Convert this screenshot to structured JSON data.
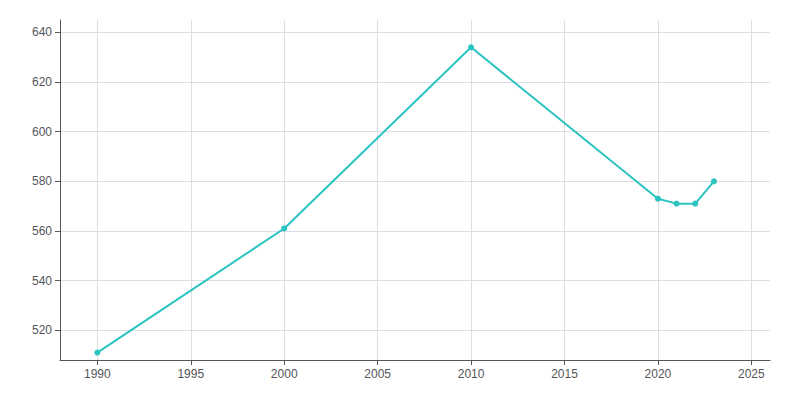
{
  "chart_data": {
    "type": "line",
    "x": [
      1990,
      2000,
      2010,
      2020,
      2021,
      2022,
      2023
    ],
    "values": [
      511,
      561,
      634,
      573,
      571,
      571,
      580
    ],
    "color": "#2BC4C1",
    "marker": "circle",
    "xlim": [
      1988,
      2026
    ],
    "ylim": [
      508,
      645
    ],
    "xticks": [
      1990,
      1995,
      2000,
      2005,
      2010,
      2015,
      2020,
      2025
    ],
    "yticks": [
      520,
      540,
      560,
      580,
      600,
      620,
      640
    ],
    "grid": true
  }
}
